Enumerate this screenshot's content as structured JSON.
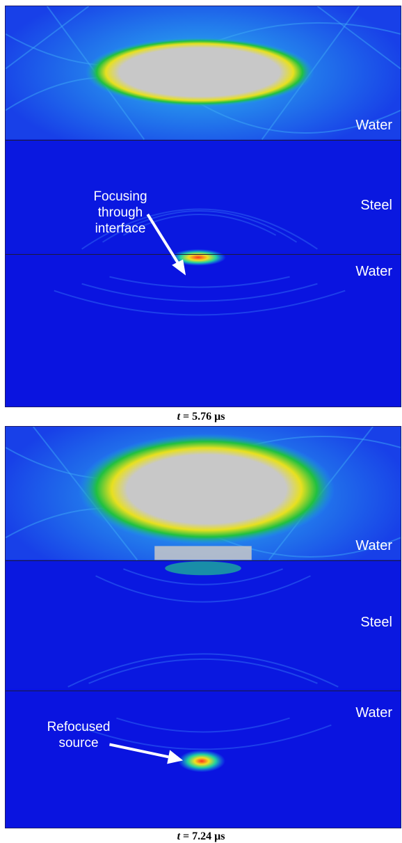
{
  "panels": [
    {
      "media": [
        "Water",
        "Steel",
        "Water"
      ],
      "annotation": [
        "Focusing",
        "through",
        "interface"
      ],
      "caption_var": "t",
      "caption_value": "= 5.76 μs"
    },
    {
      "media": [
        "Water",
        "Steel",
        "Water"
      ],
      "annotation": [
        "Refocused",
        "source"
      ],
      "caption_var": "t",
      "caption_value": "= 7.24 μs"
    }
  ],
  "colors": {
    "background_field": "#0a14e0",
    "high_amplitude": "#c8c8c8",
    "mid_amplitude": "#20c040",
    "peak": "#ff3020",
    "label_text": "#ffffff"
  }
}
